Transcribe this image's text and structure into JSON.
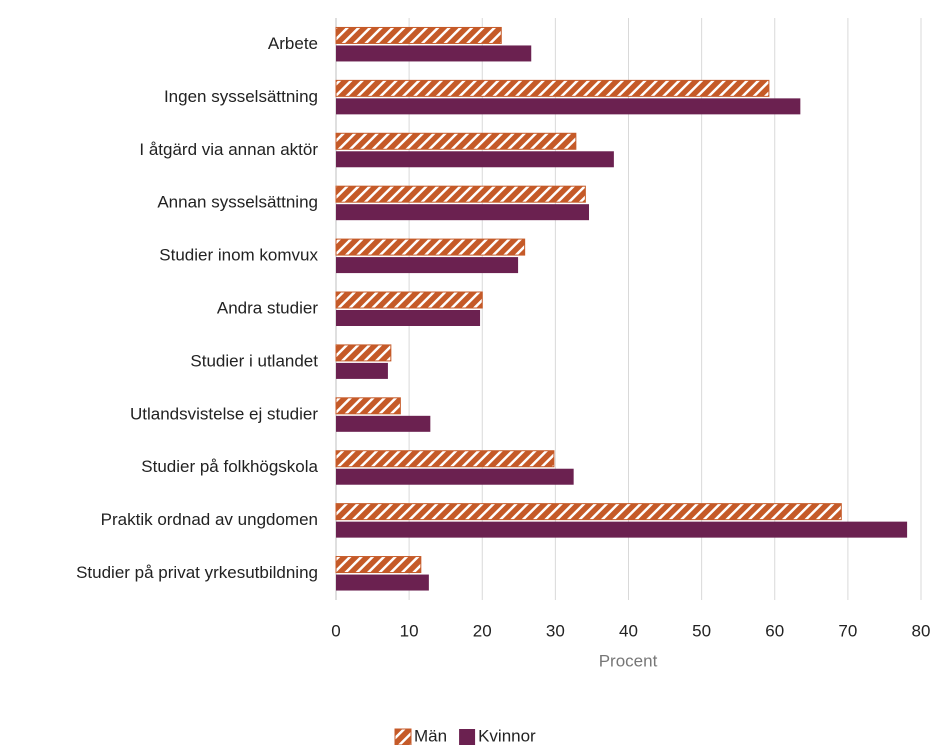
{
  "chart_data": {
    "type": "hbar",
    "categories": [
      "Arbete",
      "Ingen sysselsättning",
      "I åtgärd via annan aktör",
      "Annan sysselsättning",
      "Studier inom komvux",
      "Andra studier",
      "Studier i utlandet",
      "Utlandsvistelse ej studier",
      "Studier på folkhögskola",
      "Praktik ordnad av ungdomen",
      "Studier på privat yrkesutbildning"
    ],
    "series": [
      {
        "name": "Män",
        "color": "#c55a28",
        "pattern": "hatch",
        "values": [
          22.6,
          59.2,
          32.8,
          34.1,
          25.8,
          20.0,
          7.5,
          8.8,
          29.8,
          69.1,
          11.6
        ]
      },
      {
        "name": "Kvinnor",
        "color": "#6b2150",
        "values": [
          26.7,
          63.5,
          38.0,
          34.6,
          24.9,
          19.7,
          7.1,
          12.9,
          32.5,
          78.1,
          12.7
        ]
      }
    ],
    "xlabel": "Procent",
    "xlim": [
      0,
      80
    ],
    "xticks": [
      0,
      10,
      20,
      30,
      40,
      50,
      60,
      70,
      80
    ],
    "grid": true,
    "legend": "bottom"
  }
}
